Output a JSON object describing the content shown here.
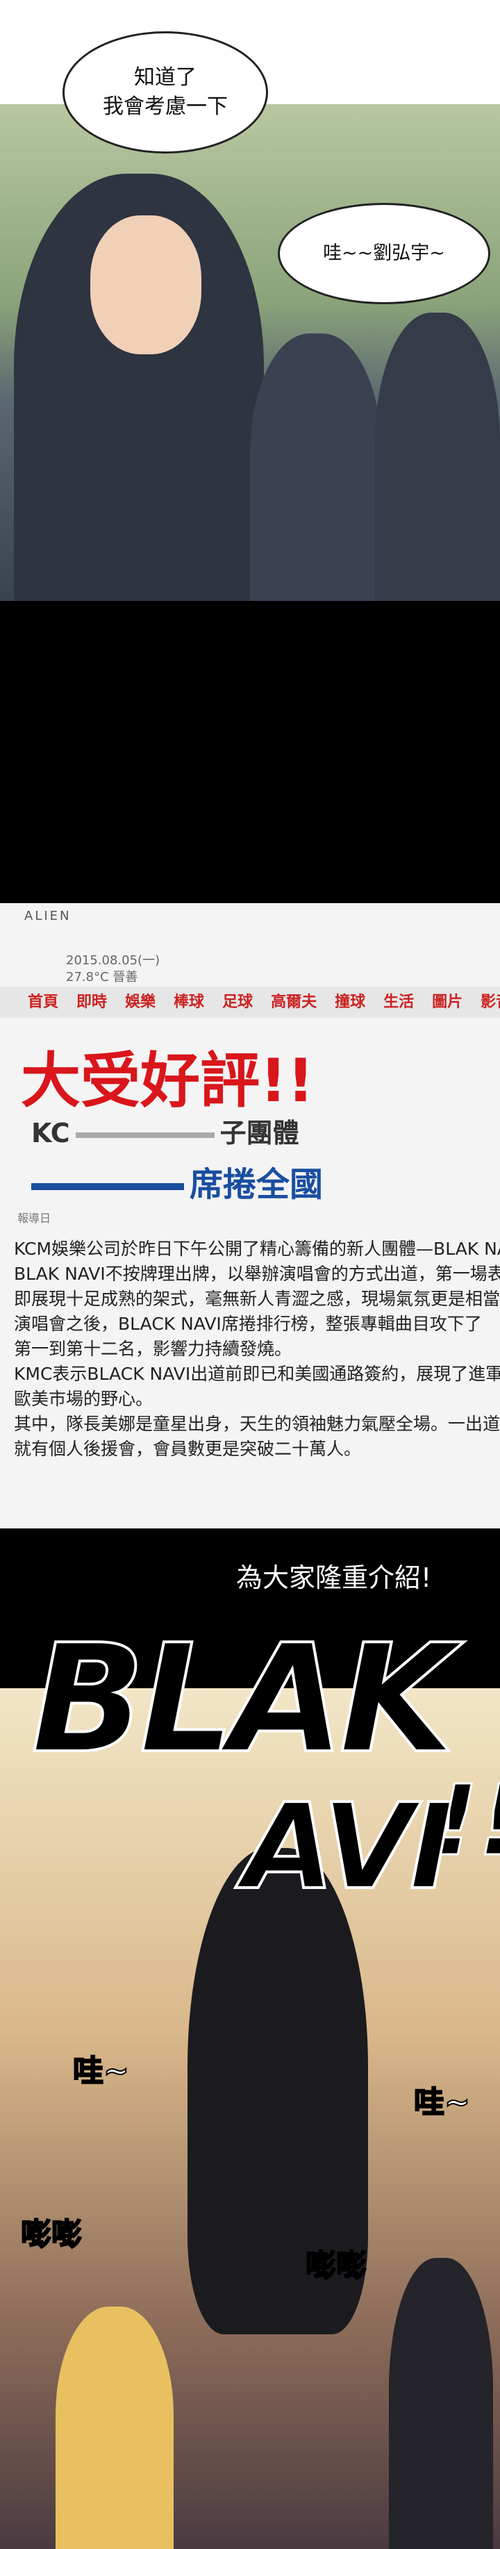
{
  "panel_1": {
    "speech_1": [
      "知道了",
      "我會考慮一下"
    ],
    "speech_2": "哇~~劉弘宇~"
  },
  "panel_2": {
    "site_name": "ALIEN",
    "date": "2015.08.05(一)",
    "weather": "27.8°C 晉善",
    "nav": [
      "首頁",
      "即時",
      "娛樂",
      "棒球",
      "足球",
      "高爾夫",
      "撞球",
      "生活",
      "圖片",
      "影音"
    ],
    "headline": "大受好評!!",
    "subhead_start": "KC",
    "subhead_end": "子團體",
    "subhead_2": "席捲全國",
    "byline": "報導日",
    "article": [
      "KCM娛樂公司於昨日下午公開了精心籌備的新人團體—BLAK NAVI",
      "BLAK NAVI不按牌理出牌，以舉辦演唱會的方式出道，第一場表演",
      "即展現十足成熟的架式，毫無新人青澀之感，現場氣氛更是相當火熱",
      "演唱會之後，BLACK NAVI席捲排行榜，整張專輯曲目攻下了",
      "第一到第十二名，影響力持續發燒。",
      "KMC表示BLACK NAVI出道前即已和美國通路簽約，展現了進軍",
      "歐美市場的野心。",
      "其中，隊長美娜是童星出身，天生的領袖魅力氣壓全場。一出道",
      "就有個人後援會，會員數更是突破二十萬人。"
    ]
  },
  "caption": "為大家隆重介紹!",
  "panel_3": {
    "title_1": "BLAK",
    "title_2": "AVI",
    "title_3": "!!",
    "sfx": [
      "哇~",
      "哇~",
      "嘭嘭",
      "嘭嘭"
    ]
  }
}
